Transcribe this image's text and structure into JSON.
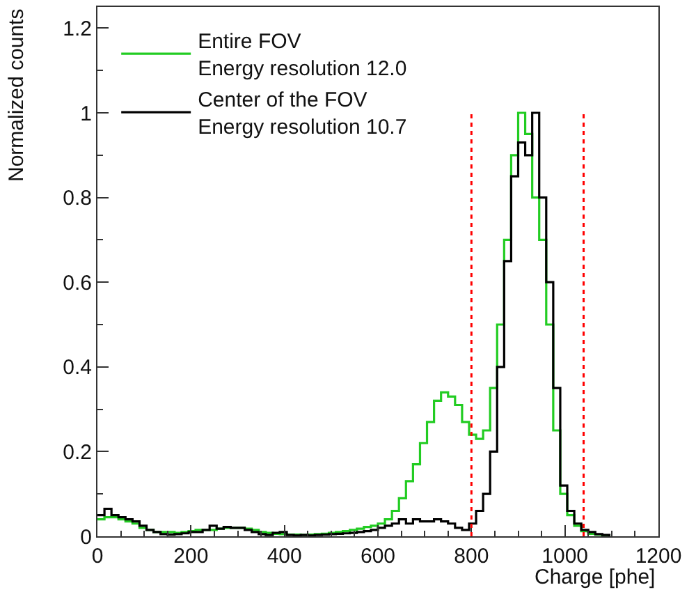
{
  "chart_data": {
    "type": "step",
    "xlabel": "Charge [phe]",
    "ylabel": "Normalized counts",
    "x": [
      0,
      15,
      30,
      45,
      60,
      75,
      90,
      105,
      120,
      135,
      150,
      165,
      180,
      195,
      210,
      225,
      240,
      255,
      270,
      285,
      300,
      315,
      330,
      345,
      360,
      375,
      390,
      405,
      420,
      435,
      450,
      465,
      480,
      495,
      510,
      525,
      540,
      555,
      570,
      585,
      600,
      615,
      630,
      645,
      660,
      675,
      690,
      705,
      720,
      735,
      750,
      765,
      780,
      795,
      810,
      825,
      840,
      855,
      870,
      885,
      900,
      915,
      930,
      945,
      960,
      975,
      990,
      1005,
      1020,
      1035,
      1050,
      1065,
      1080,
      1095
    ],
    "series": [
      {
        "name": "Entire FOV\nEnergy resolution 12.0",
        "color": "#22cc22",
        "values": [
          0.04,
          0.045,
          0.045,
          0.04,
          0.035,
          0.03,
          0.02,
          0.015,
          0.01,
          0.01,
          0.01,
          0.008,
          0.01,
          0.012,
          0.015,
          0.015,
          0.015,
          0.018,
          0.02,
          0.02,
          0.02,
          0.018,
          0.015,
          0.01,
          0.008,
          0.006,
          0.005,
          0.004,
          0.004,
          0.003,
          0.004,
          0.005,
          0.006,
          0.008,
          0.01,
          0.012,
          0.015,
          0.018,
          0.022,
          0.025,
          0.03,
          0.04,
          0.06,
          0.09,
          0.13,
          0.17,
          0.22,
          0.27,
          0.32,
          0.34,
          0.33,
          0.31,
          0.27,
          0.24,
          0.23,
          0.25,
          0.35,
          0.5,
          0.7,
          0.9,
          1.0,
          0.95,
          0.8,
          0.7,
          0.5,
          0.25,
          0.1,
          0.05,
          0.025,
          0.012,
          0.006,
          0.004,
          0.002,
          0
        ]
      },
      {
        "name": "Center of the FOV\nEnergy resolution 10.7",
        "color": "#000000",
        "values": [
          0.05,
          0.065,
          0.05,
          0.045,
          0.04,
          0.035,
          0.025,
          0.015,
          0.01,
          0.005,
          0.004,
          0.005,
          0.007,
          0.01,
          0.01,
          0.015,
          0.025,
          0.018,
          0.022,
          0.02,
          0.02,
          0.015,
          0.01,
          0.005,
          0.003,
          0.008,
          0.01,
          0.003,
          0.002,
          0.003,
          0.002,
          0.003,
          0.004,
          0.005,
          0.006,
          0.007,
          0.008,
          0.01,
          0.012,
          0.015,
          0.02,
          0.025,
          0.03,
          0.04,
          0.03,
          0.04,
          0.035,
          0.035,
          0.04,
          0.035,
          0.03,
          0.02,
          0.015,
          0.03,
          0.06,
          0.1,
          0.2,
          0.4,
          0.65,
          0.85,
          0.93,
          0.9,
          1.0,
          0.8,
          0.6,
          0.35,
          0.12,
          0.06,
          0.03,
          0.015,
          0.01,
          0.005,
          0.003,
          0
        ]
      }
    ],
    "ref_lines": [
      {
        "axis": "x",
        "value": 800,
        "color": "#ff0000",
        "line_style": "dotted"
      },
      {
        "axis": "x",
        "value": 1040,
        "color": "#ff0000",
        "line_style": "dotted"
      }
    ],
    "xlim": [
      0,
      1200
    ],
    "xticks": [
      0,
      200,
      400,
      600,
      800,
      1000,
      1200
    ],
    "ylim": [
      0,
      1.25
    ],
    "yticks": [
      0,
      0.2,
      0.4,
      0.6,
      0.8,
      1,
      1.2
    ],
    "legend": "top left"
  }
}
